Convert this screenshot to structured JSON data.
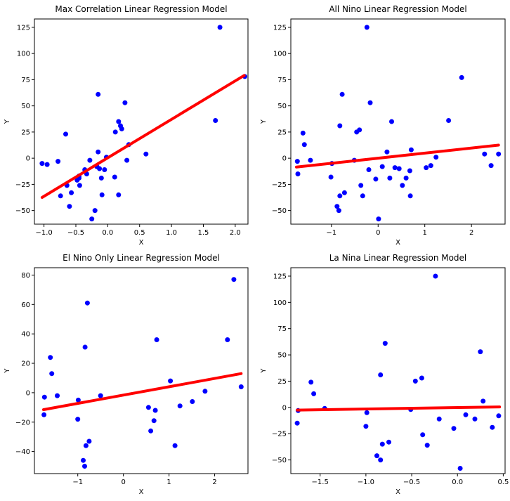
{
  "colors": {
    "points": "#0000ff",
    "line": "#ff0000"
  },
  "chart_data": [
    {
      "type": "scatter",
      "title": "Max Correlation Linear Regression Model",
      "xlabel": "X",
      "ylabel": "Y",
      "xlim": [
        -1.15,
        2.2
      ],
      "ylim": [
        -63,
        133
      ],
      "xticks": [
        -1.0,
        -0.5,
        0.0,
        0.5,
        1.0,
        1.5,
        2.0
      ],
      "xticklabels": [
        "−1.0",
        "−0.5",
        "0.0",
        "0.5",
        "1.0",
        "1.5",
        "2.0"
      ],
      "yticks": [
        -50,
        -25,
        0,
        25,
        50,
        75,
        100,
        125
      ],
      "yticklabels": [
        "−50",
        "−25",
        "0",
        "25",
        "50",
        "75",
        "100",
        "125"
      ],
      "points": {
        "x": [
          -1.03,
          -0.95,
          -0.78,
          -0.74,
          -0.66,
          -0.64,
          -0.6,
          -0.57,
          -0.48,
          -0.45,
          -0.45,
          -0.44,
          -0.36,
          -0.33,
          -0.28,
          -0.25,
          -0.2,
          -0.17,
          -0.15,
          -0.15,
          -0.13,
          -0.1,
          -0.09,
          -0.05,
          -0.02,
          0.11,
          0.12,
          0.17,
          0.17,
          0.2,
          0.22,
          0.27,
          0.3,
          0.33,
          0.6,
          1.69,
          1.76,
          2.15
        ],
        "y": [
          -5,
          -6,
          -3,
          -36,
          23,
          -26,
          -46,
          -33,
          -21,
          -19,
          -17,
          -26,
          -11,
          -15,
          -2,
          -58,
          -50,
          -8,
          61,
          6,
          -10,
          -19,
          -35,
          -11,
          1,
          -18,
          25,
          35,
          -35,
          31,
          28,
          53,
          -2,
          13,
          4,
          36,
          125,
          78
        ]
      },
      "regression": {
        "x": [
          -1.03,
          2.14
        ],
        "y": [
          -37.5,
          79
        ]
      }
    },
    {
      "type": "scatter",
      "title": "All Nino Linear Regression Model",
      "xlabel": "X",
      "ylabel": "Y",
      "xlim": [
        -1.87,
        2.72
      ],
      "ylim": [
        -63,
        133
      ],
      "xticks": [
        -1,
        0,
        1,
        2
      ],
      "xticklabels": [
        "−1",
        "0",
        "1",
        "2"
      ],
      "yticks": [
        -50,
        -25,
        0,
        25,
        50,
        75,
        100,
        125
      ],
      "yticklabels": [
        "−50",
        "−25",
        "0",
        "25",
        "50",
        "75",
        "100",
        "125"
      ],
      "points": {
        "x": [
          -1.73,
          -1.72,
          -1.61,
          -1.58,
          -1.45,
          -1.01,
          -0.99,
          -0.88,
          -0.84,
          -0.82,
          -0.82,
          -0.77,
          -0.72,
          -0.51,
          -0.46,
          -0.4,
          -0.37,
          -0.33,
          -0.24,
          -0.2,
          -0.17,
          0.01,
          -0.05,
          0.09,
          0.19,
          0.25,
          0.29,
          0.36,
          0.45,
          0.52,
          0.6,
          0.68,
          0.71,
          0.69,
          1.03,
          1.13,
          1.24,
          1.51,
          1.79,
          2.28,
          2.42,
          2.58
        ],
        "y": [
          -3,
          -15,
          24,
          13,
          -2,
          -18,
          -5,
          -46,
          -50,
          31,
          -36,
          61,
          -33,
          -2,
          25,
          27,
          -26,
          -36,
          125,
          -11,
          53,
          -58,
          -20,
          -8,
          6,
          -19,
          35,
          -9,
          -10,
          -26,
          -19,
          -12,
          8,
          -36,
          -9,
          -7,
          1,
          36,
          77,
          4,
          -7,
          4
        ]
      },
      "regression": {
        "x": [
          -1.75,
          2.58
        ],
        "y": [
          -8.5,
          12.5
        ]
      }
    },
    {
      "type": "scatter",
      "title": "El Nino Only Linear Regression Model",
      "xlabel": "X",
      "ylabel": "Y",
      "xlim": [
        -1.95,
        2.73
      ],
      "ylim": [
        -55,
        85
      ],
      "xticks": [
        -1,
        0,
        1,
        2
      ],
      "xticklabels": [
        "−1",
        "0",
        "1",
        "2"
      ],
      "yticks": [
        -40,
        -20,
        0,
        20,
        40,
        60,
        80
      ],
      "yticklabels": [
        "−40",
        "−20",
        "0",
        "20",
        "40",
        "60",
        "80"
      ],
      "points": {
        "x": [
          -1.73,
          -1.74,
          -1.6,
          -1.57,
          -1.45,
          -1.0,
          -0.99,
          -0.88,
          -0.85,
          -0.84,
          -0.82,
          -0.79,
          -0.75,
          -0.5,
          0.55,
          0.6,
          0.67,
          0.7,
          0.73,
          1.03,
          1.13,
          1.24,
          1.51,
          1.79,
          2.28,
          2.42,
          2.58
        ],
        "y": [
          -3,
          -15,
          24,
          13,
          -2,
          -18,
          -5,
          -46,
          -50,
          31,
          -36,
          61,
          -33,
          -2,
          -10,
          -26,
          -19,
          -12,
          36,
          8,
          -36,
          -9,
          -6,
          1,
          36,
          77,
          4
        ]
      },
      "regression": {
        "x": [
          -1.75,
          2.58
        ],
        "y": [
          -11.5,
          13
        ]
      }
    },
    {
      "type": "scatter",
      "title": "La Nina Linear Regression Model",
      "xlabel": "X",
      "ylabel": "Y",
      "xlim": [
        -1.82,
        0.52
      ],
      "ylim": [
        -63,
        133
      ],
      "xticks": [
        -1.5,
        -1.0,
        -0.5,
        0.0,
        0.5
      ],
      "xticklabels": [
        "−1.5",
        "−1.0",
        "−0.5",
        "0.0",
        "0.5"
      ],
      "yticks": [
        -50,
        -25,
        0,
        25,
        50,
        75,
        100,
        125
      ],
      "yticklabels": [
        "−50",
        "−25",
        "0",
        "25",
        "50",
        "75",
        "100",
        "125"
      ],
      "points": {
        "x": [
          -1.74,
          -1.75,
          -1.6,
          -1.57,
          -1.45,
          -1.0,
          -0.99,
          -0.88,
          -0.84,
          -0.84,
          -0.82,
          -0.79,
          -0.75,
          -0.51,
          -0.46,
          -0.39,
          -0.38,
          -0.33,
          -0.24,
          -0.2,
          0.03,
          -0.04,
          0.09,
          0.19,
          0.25,
          0.28,
          0.38,
          0.45
        ],
        "y": [
          -3,
          -15,
          24,
          13,
          -1,
          -18,
          -5,
          -46,
          -50,
          31,
          -35,
          61,
          -33,
          -2,
          25,
          28,
          -26,
          -36,
          125,
          -11,
          -58,
          -20,
          -7,
          -11,
          53,
          6,
          -19,
          -8
        ]
      },
      "regression": {
        "x": [
          -1.75,
          0.46
        ],
        "y": [
          -2.5,
          0.5
        ]
      }
    }
  ]
}
